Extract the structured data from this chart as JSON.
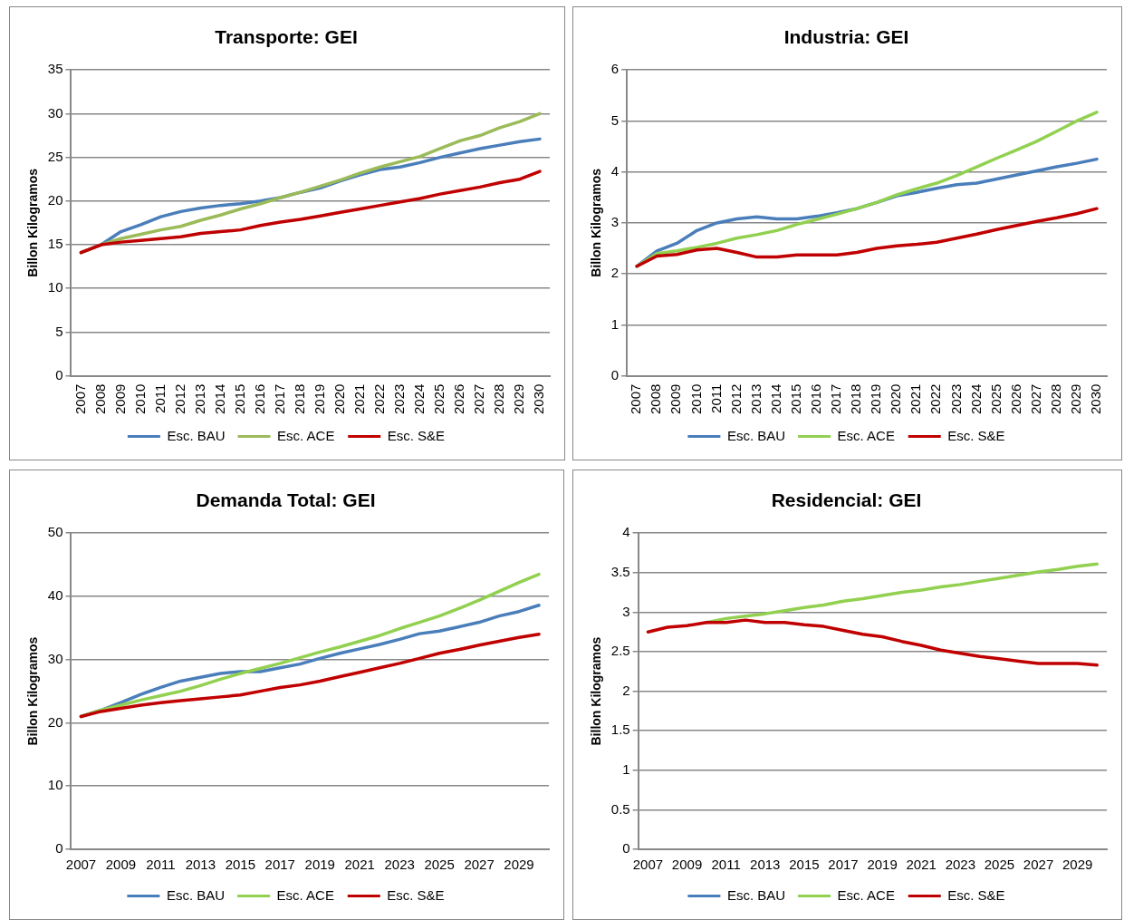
{
  "chart_data": [
    {
      "type": "line",
      "title": "Transporte: GEI",
      "ylabel": "Billon Kilogramos",
      "categories": [
        "2007",
        "2008",
        "2009",
        "2010",
        "2011",
        "2012",
        "2013",
        "2014",
        "2015",
        "2016",
        "2017",
        "2018",
        "2019",
        "2020",
        "2021",
        "2022",
        "2023",
        "2024",
        "2025",
        "2026",
        "2027",
        "2028",
        "2029",
        "2030"
      ],
      "series": [
        {
          "name": "Esc. BAU",
          "color": "#4a7ebb",
          "values": [
            14.1,
            15,
            16.5,
            17.3,
            18.2,
            18.8,
            19.2,
            19.5,
            19.7,
            20,
            20.4,
            21,
            21.5,
            22.3,
            23,
            23.6,
            23.9,
            24.4,
            25,
            25.5,
            26,
            26.4,
            26.8,
            27.1
          ]
        },
        {
          "name": "Esc. ACE",
          "color": "#9bbb59",
          "values": [
            14.1,
            15,
            15.7,
            16.2,
            16.7,
            17.1,
            17.8,
            18.4,
            19.1,
            19.7,
            20.4,
            21,
            21.7,
            22.4,
            23.2,
            23.9,
            24.5,
            25.1,
            26,
            26.9,
            27.5,
            28.4,
            29.1,
            30
          ]
        },
        {
          "name": "Esc. S&E",
          "color": "#c00000",
          "values": [
            14.1,
            15,
            15.3,
            15.5,
            15.7,
            15.9,
            16.3,
            16.5,
            16.7,
            17.2,
            17.6,
            17.9,
            18.3,
            18.7,
            19.1,
            19.5,
            19.9,
            20.3,
            20.8,
            21.2,
            21.6,
            22.1,
            22.5,
            23.4
          ]
        }
      ],
      "ylim": [
        0,
        35
      ],
      "yticks": [
        0,
        5,
        10,
        15,
        20,
        25,
        30,
        35
      ],
      "grid": "y",
      "legend": "bottom",
      "marker": "none"
    },
    {
      "type": "line",
      "title": "Industria: GEI",
      "ylabel": "Billon Kilogramos",
      "categories": [
        "2007",
        "2008",
        "2009",
        "2010",
        "2011",
        "2012",
        "2013",
        "2014",
        "2015",
        "2016",
        "2017",
        "2018",
        "2019",
        "2020",
        "2021",
        "2022",
        "2023",
        "2024",
        "2025",
        "2026",
        "2027",
        "2028",
        "2029",
        "2030"
      ],
      "series": [
        {
          "name": "Esc. BAU",
          "color": "#4a7ebb",
          "values": [
            2.15,
            2.45,
            2.6,
            2.85,
            3.0,
            3.08,
            3.12,
            3.08,
            3.08,
            3.13,
            3.2,
            3.28,
            3.4,
            3.53,
            3.6,
            3.68,
            3.75,
            3.78,
            3.86,
            3.94,
            4.02,
            4.1,
            4.17,
            4.25
          ]
        },
        {
          "name": "Esc. ACE",
          "color": "#92d050",
          "values": [
            2.15,
            2.4,
            2.45,
            2.52,
            2.6,
            2.7,
            2.77,
            2.85,
            2.97,
            3.07,
            3.17,
            3.28,
            3.4,
            3.55,
            3.67,
            3.78,
            3.93,
            4.1,
            4.27,
            4.43,
            4.6,
            4.8,
            5.0,
            5.17
          ]
        },
        {
          "name": "Esc. S&E",
          "color": "#c00000",
          "values": [
            2.15,
            2.35,
            2.38,
            2.47,
            2.5,
            2.42,
            2.33,
            2.33,
            2.37,
            2.37,
            2.37,
            2.42,
            2.5,
            2.55,
            2.58,
            2.62,
            2.7,
            2.78,
            2.87,
            2.95,
            3.03,
            3.1,
            3.18,
            3.28
          ]
        }
      ],
      "ylim": [
        0,
        6
      ],
      "yticks": [
        0,
        1,
        2,
        3,
        4,
        5,
        6
      ],
      "grid": "y",
      "legend": "bottom",
      "marker": "none"
    },
    {
      "type": "line",
      "title": "Demanda Total: GEI",
      "ylabel": "Billon Kilogramos",
      "categories": [
        "2007",
        null,
        "2009",
        null,
        "2011",
        null,
        "2013",
        null,
        "2015",
        null,
        "2017",
        null,
        "2019",
        null,
        "2021",
        null,
        "2023",
        null,
        "2025",
        null,
        "2027",
        null,
        "2029",
        null
      ],
      "series": [
        {
          "name": "Esc. BAU",
          "color": "#4a7ebb",
          "values": [
            21,
            22,
            23.2,
            24.5,
            25.6,
            26.6,
            27.2,
            27.8,
            28.1,
            28.1,
            28.7,
            29.3,
            30.2,
            31,
            31.7,
            32.4,
            33.2,
            34.1,
            34.5,
            35.2,
            35.9,
            36.9,
            37.6,
            38.6
          ]
        },
        {
          "name": "Esc. ACE",
          "color": "#92d050",
          "values": [
            21,
            22,
            22.8,
            23.6,
            24.3,
            25,
            25.9,
            26.9,
            27.8,
            28.6,
            29.4,
            30.3,
            31.2,
            32,
            32.9,
            33.8,
            34.9,
            35.9,
            36.9,
            38.1,
            39.4,
            40.8,
            42.2,
            43.5
          ]
        },
        {
          "name": "Esc. S&E",
          "color": "#c00000",
          "values": [
            21,
            21.8,
            22.3,
            22.8,
            23.2,
            23.5,
            23.8,
            24.1,
            24.4,
            25,
            25.6,
            26,
            26.6,
            27.3,
            28,
            28.7,
            29.4,
            30.2,
            31,
            31.6,
            32.3,
            32.9,
            33.5,
            34
          ]
        }
      ],
      "ylim": [
        0,
        50
      ],
      "yticks": [
        0,
        10,
        20,
        30,
        40,
        50
      ],
      "grid": "y",
      "legend": "bottom",
      "marker": "none"
    },
    {
      "type": "line",
      "title": "Residencial: GEI",
      "ylabel": "Billon Kilogramos",
      "categories": [
        "2007",
        null,
        "2009",
        null,
        "2011",
        null,
        "2013",
        null,
        "2015",
        null,
        "2017",
        null,
        "2019",
        null,
        "2021",
        null,
        "2023",
        null,
        "2025",
        null,
        "2027",
        null,
        "2029",
        null
      ],
      "series": [
        {
          "name": "Esc. BAU",
          "color": "#4a7ebb",
          "values": [
            null,
            null,
            null,
            null,
            null,
            null,
            null,
            null,
            null,
            null,
            null,
            null,
            null,
            null,
            null,
            null,
            null,
            null,
            null,
            null,
            null,
            null,
            null,
            null
          ]
        },
        {
          "name": "Esc. ACE",
          "color": "#92d050",
          "values": [
            null,
            null,
            null,
            2.87,
            2.92,
            2.95,
            2.98,
            3.02,
            3.06,
            3.09,
            3.14,
            3.17,
            3.21,
            3.25,
            3.28,
            3.32,
            3.35,
            3.39,
            3.43,
            3.47,
            3.51,
            3.54,
            3.58,
            3.61
          ]
        },
        {
          "name": "Esc. S&E",
          "color": "#c00000",
          "values": [
            2.75,
            2.81,
            2.83,
            2.87,
            2.87,
            2.9,
            2.87,
            2.87,
            2.84,
            2.82,
            2.77,
            2.72,
            2.69,
            2.63,
            2.58,
            2.52,
            2.48,
            2.44,
            2.41,
            2.38,
            2.35,
            2.35,
            2.35,
            2.33
          ]
        }
      ],
      "ylim": [
        0,
        4
      ],
      "yticks": [
        0,
        0.5,
        1,
        1.5,
        2,
        2.5,
        3,
        3.5,
        4
      ],
      "grid": "y",
      "legend": "bottom",
      "marker": "none"
    }
  ]
}
